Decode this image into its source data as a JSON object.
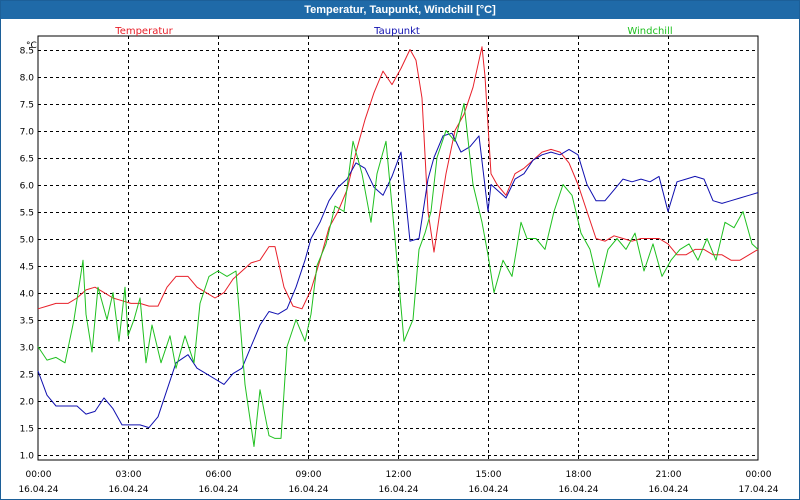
{
  "window": {
    "title": "Temperatur, Taupunkt, Windchill [°C]"
  },
  "chart_data": {
    "type": "line",
    "title": "Temperatur, Taupunkt, Windchill [°C]",
    "ylabel": "°C",
    "xlabel": "",
    "ylim": [
      0.9,
      8.75
    ],
    "xlim": [
      0,
      24
    ],
    "grid": true,
    "yticks": [
      "1.0",
      "1.5",
      "2.0",
      "2.5",
      "3.0",
      "3.5",
      "4.0",
      "4.5",
      "5.0",
      "5.5",
      "6.0",
      "6.5",
      "7.0",
      "7.5",
      "8.0",
      "8.5"
    ],
    "xticks": [
      {
        "time": "00:00",
        "date": "16.04.24"
      },
      {
        "time": "03:00",
        "date": "16.04.24"
      },
      {
        "time": "06:00",
        "date": "16.04.24"
      },
      {
        "time": "09:00",
        "date": "16.04.24"
      },
      {
        "time": "12:00",
        "date": "16.04.24"
      },
      {
        "time": "15:00",
        "date": "16.04.24"
      },
      {
        "time": "18:00",
        "date": "16.04.24"
      },
      {
        "time": "21:00",
        "date": "16.04.24"
      },
      {
        "time": "00:00",
        "date": "17.04.24"
      }
    ],
    "series": [
      {
        "name": "Temperatur",
        "color": "#e8202a",
        "x": [
          0,
          0.3,
          0.6,
          1,
          1.3,
          1.6,
          1.9,
          2.2,
          2.5,
          2.8,
          3.1,
          3.4,
          3.7,
          4,
          4.3,
          4.6,
          5,
          5.3,
          5.6,
          5.9,
          6.2,
          6.5,
          6.8,
          7.1,
          7.4,
          7.7,
          7.9,
          8.2,
          8.5,
          8.8,
          9.1,
          9.4,
          9.7,
          10,
          10.3,
          10.6,
          10.9,
          11.2,
          11.5,
          11.8,
          12.1,
          12.4,
          12.6,
          12.8,
          13,
          13.2,
          13.4,
          13.6,
          13.9,
          14.2,
          14.5,
          14.8,
          14.9,
          15.1,
          15.3,
          15.6,
          15.9,
          16.2,
          16.5,
          16.8,
          17.1,
          17.4,
          17.7,
          18,
          18.3,
          18.6,
          18.9,
          19.2,
          19.5,
          19.8,
          20.1,
          20.4,
          20.7,
          21,
          21.3,
          21.6,
          21.9,
          22.2,
          22.5,
          22.8,
          23.1,
          23.4,
          23.7,
          24
        ],
        "values": [
          3.7,
          3.75,
          3.8,
          3.8,
          3.9,
          4.05,
          4.1,
          4.0,
          3.9,
          3.85,
          3.8,
          3.8,
          3.75,
          3.75,
          4.1,
          4.3,
          4.3,
          4.1,
          4.0,
          3.9,
          4.0,
          4.25,
          4.4,
          4.55,
          4.6,
          4.85,
          4.85,
          4.1,
          3.75,
          3.7,
          4.05,
          4.6,
          5.2,
          5.5,
          5.9,
          6.6,
          7.2,
          7.7,
          8.1,
          7.85,
          8.15,
          8.5,
          8.3,
          7.6,
          5.5,
          4.75,
          5.5,
          6.2,
          7.0,
          7.3,
          7.8,
          8.55,
          8.0,
          6.2,
          6.0,
          5.8,
          6.2,
          6.3,
          6.45,
          6.6,
          6.65,
          6.6,
          6.4,
          6.0,
          5.5,
          5.0,
          4.95,
          5.05,
          5.0,
          4.95,
          5.0,
          5.0,
          5.0,
          4.9,
          4.7,
          4.7,
          4.8,
          4.8,
          4.7,
          4.7,
          4.6,
          4.6,
          4.7,
          4.8
        ]
      },
      {
        "name": "Taupunkt",
        "color": "#1010b0",
        "x": [
          0,
          0.3,
          0.6,
          1,
          1.3,
          1.6,
          1.9,
          2.2,
          2.5,
          2.8,
          3.1,
          3.4,
          3.7,
          4,
          4.3,
          4.6,
          5,
          5.3,
          5.6,
          5.9,
          6.2,
          6.5,
          6.8,
          7.1,
          7.4,
          7.7,
          8,
          8.3,
          8.6,
          8.9,
          9.1,
          9.4,
          9.7,
          10,
          10.3,
          10.6,
          10.9,
          11.2,
          11.5,
          11.8,
          12.1,
          12.4,
          12.7,
          13,
          13.2,
          13.5,
          13.8,
          14.1,
          14.4,
          14.7,
          15,
          15.1,
          15.3,
          15.6,
          15.9,
          16.2,
          16.5,
          16.8,
          17.1,
          17.4,
          17.7,
          18,
          18.3,
          18.6,
          18.9,
          19.2,
          19.5,
          19.8,
          20.1,
          20.4,
          20.7,
          21,
          21.3,
          21.6,
          21.9,
          22.2,
          22.5,
          22.8,
          23.1,
          23.4,
          23.7,
          24
        ],
        "values": [
          2.55,
          2.1,
          1.9,
          1.9,
          1.9,
          1.75,
          1.8,
          2.05,
          1.85,
          1.55,
          1.55,
          1.55,
          1.5,
          1.7,
          2.2,
          2.7,
          2.85,
          2.6,
          2.5,
          2.4,
          2.3,
          2.5,
          2.6,
          3.0,
          3.4,
          3.65,
          3.6,
          3.7,
          4.1,
          4.6,
          5.0,
          5.3,
          5.7,
          5.95,
          6.1,
          6.4,
          6.3,
          5.95,
          5.8,
          6.15,
          6.6,
          4.95,
          5.0,
          6.1,
          6.5,
          6.9,
          6.95,
          6.6,
          6.7,
          6.9,
          5.5,
          6.0,
          5.9,
          5.75,
          6.1,
          6.2,
          6.45,
          6.55,
          6.6,
          6.55,
          6.65,
          6.55,
          6.0,
          5.7,
          5.7,
          5.9,
          6.1,
          6.05,
          6.1,
          6.05,
          6.15,
          5.5,
          6.05,
          6.1,
          6.15,
          6.1,
          5.7,
          5.65,
          5.7,
          5.75,
          5.8,
          5.85
        ]
      },
      {
        "name": "Windchill",
        "color": "#20c020",
        "x": [
          0,
          0.3,
          0.6,
          0.9,
          1.2,
          1.5,
          1.6,
          1.8,
          2.0,
          2.3,
          2.5,
          2.7,
          2.9,
          3.0,
          3.2,
          3.4,
          3.6,
          3.8,
          4.1,
          4.4,
          4.6,
          4.9,
          5.2,
          5.4,
          5.7,
          6.0,
          6.3,
          6.6,
          6.9,
          7.2,
          7.4,
          7.7,
          7.9,
          8.1,
          8.3,
          8.6,
          8.9,
          9.1,
          9.3,
          9.6,
          9.9,
          10.2,
          10.5,
          10.8,
          11.1,
          11.3,
          11.6,
          11.9,
          12.2,
          12.5,
          12.7,
          12.9,
          13.1,
          13.3,
          13.6,
          13.9,
          14.2,
          14.5,
          14.8,
          15.0,
          15.2,
          15.5,
          15.8,
          16.1,
          16.3,
          16.6,
          16.9,
          17.2,
          17.5,
          17.8,
          18.1,
          18.4,
          18.7,
          19.0,
          19.3,
          19.6,
          19.9,
          20.2,
          20.5,
          20.8,
          21.1,
          21.4,
          21.7,
          22.0,
          22.3,
          22.6,
          22.9,
          23.2,
          23.5,
          23.8,
          24
        ],
        "values": [
          3.0,
          2.75,
          2.8,
          2.7,
          3.5,
          4.6,
          3.6,
          2.9,
          4.1,
          3.5,
          4.0,
          3.1,
          4.1,
          3.2,
          3.5,
          3.9,
          2.7,
          3.4,
          2.7,
          3.2,
          2.6,
          3.2,
          2.7,
          3.8,
          4.3,
          4.4,
          4.3,
          4.4,
          2.3,
          1.15,
          2.2,
          1.35,
          1.3,
          1.3,
          3.0,
          3.5,
          3.1,
          3.6,
          4.5,
          4.9,
          5.6,
          5.5,
          6.8,
          6.2,
          5.3,
          6.2,
          6.8,
          5.0,
          3.1,
          3.5,
          4.8,
          5.1,
          5.5,
          6.5,
          7.0,
          6.8,
          7.5,
          6.0,
          5.3,
          4.7,
          4.0,
          4.6,
          4.3,
          5.3,
          5.0,
          5.0,
          4.8,
          5.5,
          6.0,
          5.8,
          5.1,
          4.8,
          4.1,
          4.8,
          5.0,
          4.8,
          5.1,
          4.4,
          4.9,
          4.3,
          4.6,
          4.8,
          4.9,
          4.6,
          5.0,
          4.6,
          5.3,
          5.2,
          5.5,
          4.9,
          4.8
        ]
      }
    ]
  }
}
